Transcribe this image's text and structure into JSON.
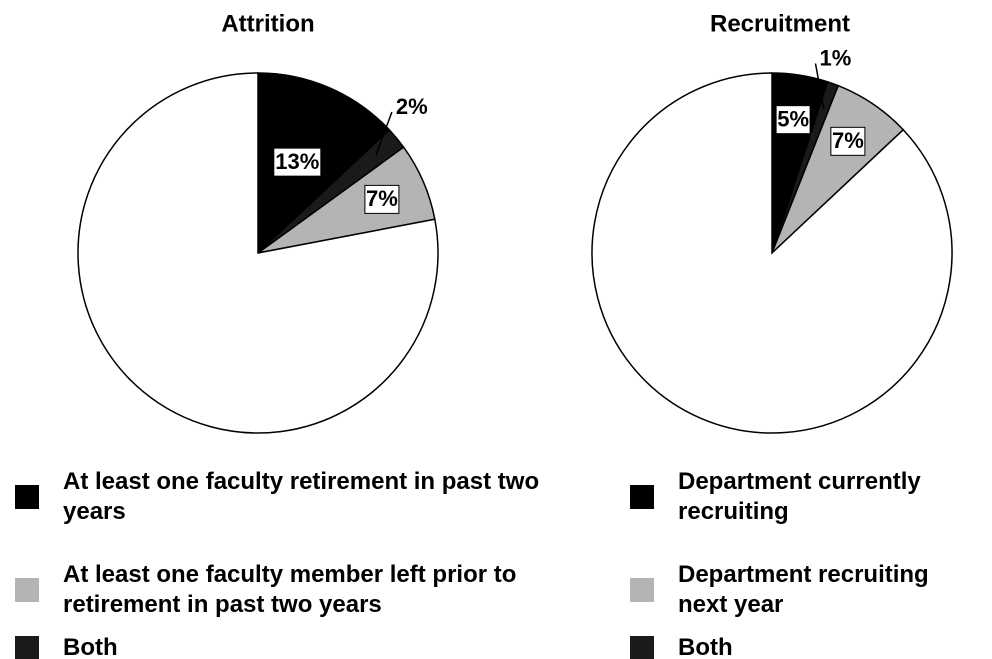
{
  "chart_data": [
    {
      "type": "pie",
      "title": "Attrition",
      "values": [
        13,
        2,
        7,
        78
      ],
      "value_labels": [
        "13%",
        "2%",
        "7%",
        null
      ],
      "colors": [
        "#000000",
        "#1a1a1a",
        "#b4b4b4",
        "#ffffff"
      ],
      "legend": [
        {
          "label": "At least one faculty retirement in past two years",
          "color": "#000000"
        },
        {
          "label": "At least one faculty member left prior to retirement in past two years",
          "color": "#b4b4b4"
        },
        {
          "label": "Both",
          "color": "#1a1a1a"
        }
      ]
    },
    {
      "type": "pie",
      "title": "Recruitment",
      "values": [
        5,
        1,
        7,
        87
      ],
      "value_labels": [
        "5%",
        "1%",
        "7%",
        null
      ],
      "colors": [
        "#000000",
        "#1a1a1a",
        "#b4b4b4",
        "#ffffff"
      ],
      "legend": [
        {
          "label": "Department currently recruiting",
          "color": "#000000"
        },
        {
          "label": "Department recruiting next year",
          "color": "#b4b4b4"
        },
        {
          "label": "Both",
          "color": "#1a1a1a"
        }
      ]
    }
  ]
}
